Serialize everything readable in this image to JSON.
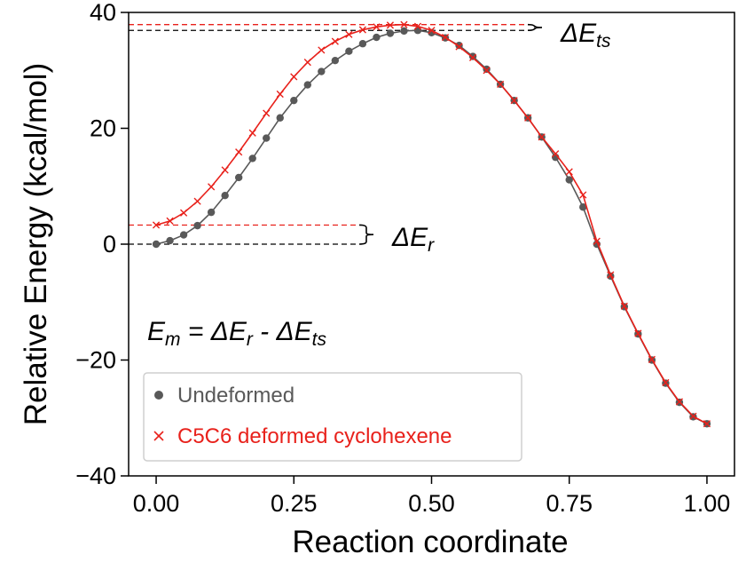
{
  "chart_data": {
    "type": "line",
    "xlabel": "Reaction coordinate",
    "ylabel": "Relative Energy (kcal/mol)",
    "xlim": [
      -0.05,
      1.05
    ],
    "ylim": [
      -40,
      40
    ],
    "x_ticks": [
      0.0,
      0.25,
      0.5,
      0.75,
      1.0
    ],
    "x_tick_labels": [
      "0.00",
      "0.25",
      "0.50",
      "0.75",
      "1.00"
    ],
    "y_ticks": [
      -40,
      -20,
      0,
      20,
      40
    ],
    "y_tick_labels": [
      "−40",
      "−20",
      "0",
      "20",
      "40"
    ],
    "grid": false,
    "legend_position": "lower-left",
    "series": [
      {
        "name": "Undeformed",
        "color": "#595959",
        "marker": "circle",
        "x": [
          0.0,
          0.025,
          0.05,
          0.075,
          0.1,
          0.125,
          0.15,
          0.175,
          0.2,
          0.225,
          0.25,
          0.275,
          0.3,
          0.325,
          0.35,
          0.375,
          0.4,
          0.425,
          0.45,
          0.475,
          0.5,
          0.525,
          0.55,
          0.575,
          0.6,
          0.625,
          0.65,
          0.675,
          0.7,
          0.725,
          0.75,
          0.775,
          0.8,
          0.825,
          0.85,
          0.875,
          0.9,
          0.925,
          0.95,
          0.975,
          1.0
        ],
        "y": [
          0.0,
          0.6,
          1.6,
          3.2,
          5.5,
          8.4,
          11.5,
          14.8,
          18.3,
          21.8,
          24.8,
          27.5,
          29.8,
          31.7,
          33.3,
          34.6,
          35.7,
          36.4,
          36.8,
          36.9,
          36.5,
          35.6,
          34.3,
          32.4,
          30.2,
          27.6,
          24.8,
          21.8,
          18.5,
          15.0,
          11.1,
          6.4,
          0.0,
          -5.5,
          -10.8,
          -15.5,
          -20.0,
          -24.0,
          -27.3,
          -29.8,
          -31.0
        ]
      },
      {
        "name": "C5C6 deformed cyclohexene",
        "color": "#e8211b",
        "marker": "x",
        "x": [
          0.0,
          0.025,
          0.05,
          0.075,
          0.1,
          0.125,
          0.15,
          0.175,
          0.2,
          0.225,
          0.25,
          0.275,
          0.3,
          0.325,
          0.35,
          0.375,
          0.4,
          0.425,
          0.45,
          0.475,
          0.5,
          0.525,
          0.55,
          0.575,
          0.6,
          0.625,
          0.65,
          0.675,
          0.7,
          0.725,
          0.75,
          0.775,
          0.8,
          0.825,
          0.85,
          0.875,
          0.9,
          0.925,
          0.95,
          0.975,
          1.0
        ],
        "y": [
          3.3,
          4.0,
          5.4,
          7.4,
          9.9,
          12.8,
          15.9,
          19.2,
          22.6,
          25.9,
          28.9,
          31.4,
          33.5,
          35.0,
          36.2,
          37.0,
          37.5,
          37.8,
          37.9,
          37.6,
          36.9,
          35.7,
          34.1,
          32.2,
          30.0,
          27.6,
          24.8,
          21.8,
          18.5,
          15.6,
          12.5,
          8.5,
          0.5,
          -5.3,
          -10.7,
          -15.4,
          -19.9,
          -23.9,
          -27.2,
          -29.7,
          -31.0
        ]
      }
    ],
    "annotations": {
      "delta_e_ts": "ΔE_ts",
      "delta_e_r": "ΔE_r",
      "equation": "E_m = ΔE_r - ΔE_ts"
    },
    "reference_lines": {
      "ts_undeformed_y": 36.9,
      "ts_deformed_y": 37.9,
      "r_deformed_y": 3.3,
      "r_undeformed_y": 0.0
    }
  }
}
